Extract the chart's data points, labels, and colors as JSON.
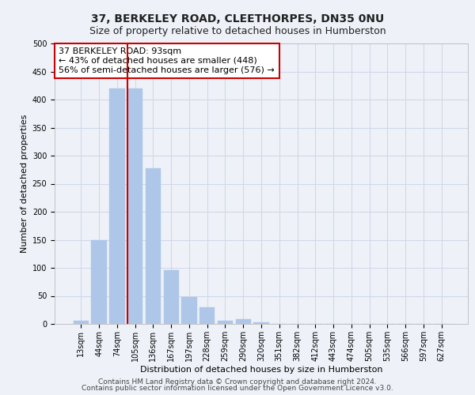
{
  "title": "37, BERKELEY ROAD, CLEETHORPES, DN35 0NU",
  "subtitle": "Size of property relative to detached houses in Humberston",
  "xlabel": "Distribution of detached houses by size in Humberston",
  "ylabel": "Number of detached properties",
  "bin_labels": [
    "13sqm",
    "44sqm",
    "74sqm",
    "105sqm",
    "136sqm",
    "167sqm",
    "197sqm",
    "228sqm",
    "259sqm",
    "290sqm",
    "320sqm",
    "351sqm",
    "382sqm",
    "412sqm",
    "443sqm",
    "474sqm",
    "505sqm",
    "535sqm",
    "566sqm",
    "597sqm",
    "627sqm"
  ],
  "bar_heights": [
    5,
    150,
    420,
    420,
    278,
    96,
    48,
    29,
    6,
    9,
    3,
    0,
    0,
    0,
    0,
    0,
    0,
    0,
    0,
    0,
    0
  ],
  "bar_color": "#aec6e8",
  "bar_edge_color": "#aec6e8",
  "grid_color": "#d0d8e8",
  "background_color": "#eef2f8",
  "annotation_line1": "37 BERKELEY ROAD: 93sqm",
  "annotation_line2": "← 43% of detached houses are smaller (448)",
  "annotation_line3": "56% of semi-detached houses are larger (576) →",
  "annotation_box_color": "#ffffff",
  "annotation_box_edge": "#cc0000",
  "red_line_color": "#cc0000",
  "footnote1": "Contains HM Land Registry data © Crown copyright and database right 2024.",
  "footnote2": "Contains public sector information licensed under the Open Government Licence v3.0.",
  "ylim": [
    0,
    500
  ],
  "yticks": [
    0,
    50,
    100,
    150,
    200,
    250,
    300,
    350,
    400,
    450,
    500
  ],
  "title_fontsize": 10,
  "subtitle_fontsize": 9,
  "ylabel_fontsize": 8,
  "xlabel_fontsize": 8,
  "tick_fontsize": 7,
  "annotation_fontsize": 8,
  "footnote_fontsize": 6.5
}
